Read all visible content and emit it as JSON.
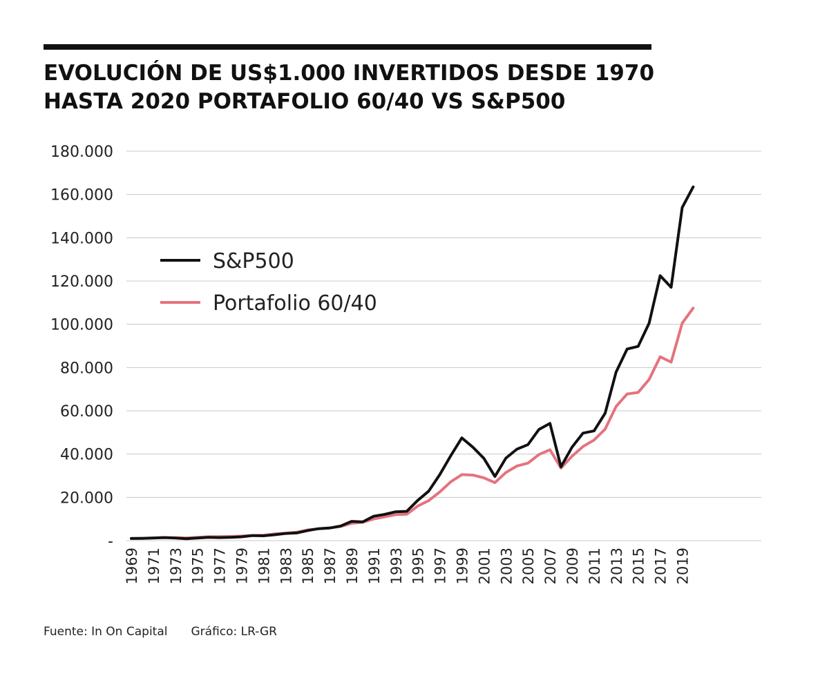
{
  "header": {
    "title_line1": "EVOLUCIÓN DE US$1.000 INVERTIDOS DESDE 1970",
    "title_line2": "HASTA 2020 PORTAFOLIO 60/40 VS S&P500"
  },
  "footer": {
    "source": "Fuente: In On Capital",
    "credit": "Gráfico: LR-GR"
  },
  "chart_data": {
    "type": "line",
    "title": "EVOLUCIÓN DE US$1.000 INVERTIDOS DESDE 1970 HASTA 2020 PORTAFOLIO 60/40 VS S&P500",
    "xlabel": "",
    "ylabel": "",
    "ylim": [
      0,
      180000
    ],
    "y_ticks": [
      0,
      20000,
      40000,
      60000,
      80000,
      100000,
      120000,
      140000,
      160000,
      180000
    ],
    "y_tick_labels": [
      "-",
      "20.000",
      "40.000",
      "60.000",
      "80.000",
      "100.000",
      "120.000",
      "140.000",
      "160.000",
      "180.000"
    ],
    "x_tick_labels": [
      "1969",
      "1971",
      "1973",
      "1975",
      "1977",
      "1979",
      "1981",
      "1983",
      "1985",
      "1987",
      "1989",
      "1991",
      "1993",
      "1995",
      "1997",
      "1999",
      "2001",
      "2003",
      "2005",
      "2007",
      "2009",
      "2011",
      "2013",
      "2015",
      "2017",
      "2019"
    ],
    "grid": true,
    "legend_position": "upper-left",
    "x": [
      1969,
      1970,
      1971,
      1972,
      1973,
      1974,
      1975,
      1976,
      1977,
      1978,
      1979,
      1980,
      1981,
      1982,
      1983,
      1984,
      1985,
      1986,
      1987,
      1988,
      1989,
      1990,
      1991,
      1992,
      1993,
      1994,
      1995,
      1996,
      1997,
      1998,
      1999,
      2000,
      2001,
      2002,
      2003,
      2004,
      2005,
      2006,
      2007,
      2008,
      2009,
      2010,
      2011,
      2012,
      2013,
      2014,
      2015,
      2016,
      2017,
      2018,
      2019,
      2020
    ],
    "series": [
      {
        "name": "S&P500",
        "color": "#111111",
        "values": [
          1000,
          1040,
          1190,
          1420,
          1210,
          890,
          1220,
          1510,
          1400,
          1490,
          1770,
          2340,
          2230,
          2710,
          3320,
          3530,
          4650,
          5520,
          5810,
          6770,
          8920,
          8640,
          11270,
          12130,
          13350,
          13530,
          18610,
          22880,
          30520,
          39240,
          47500,
          43180,
          38040,
          29640,
          38140,
          42290,
          44370,
          51370,
          54190,
          34140,
          43180,
          49680,
          50720,
          58840,
          77890,
          88550,
          89770,
          100510,
          122450,
          117080,
          153950,
          163500
        ]
      },
      {
        "name": "Portafolio 60/40",
        "color": "#e4737e",
        "values": [
          1000,
          1100,
          1280,
          1440,
          1350,
          1250,
          1500,
          1800,
          1820,
          1900,
          2100,
          2400,
          2500,
          3100,
          3400,
          3900,
          4900,
          5500,
          5900,
          6500,
          8000,
          8500,
          10000,
          11000,
          12000,
          12200,
          16000,
          18500,
          22500,
          27200,
          30500,
          30300,
          29000,
          26800,
          31500,
          34500,
          35800,
          39800,
          42000,
          33500,
          39000,
          43500,
          46500,
          51500,
          62000,
          67800,
          68500,
          74500,
          85000,
          82500,
          100500,
          107500
        ]
      }
    ]
  }
}
